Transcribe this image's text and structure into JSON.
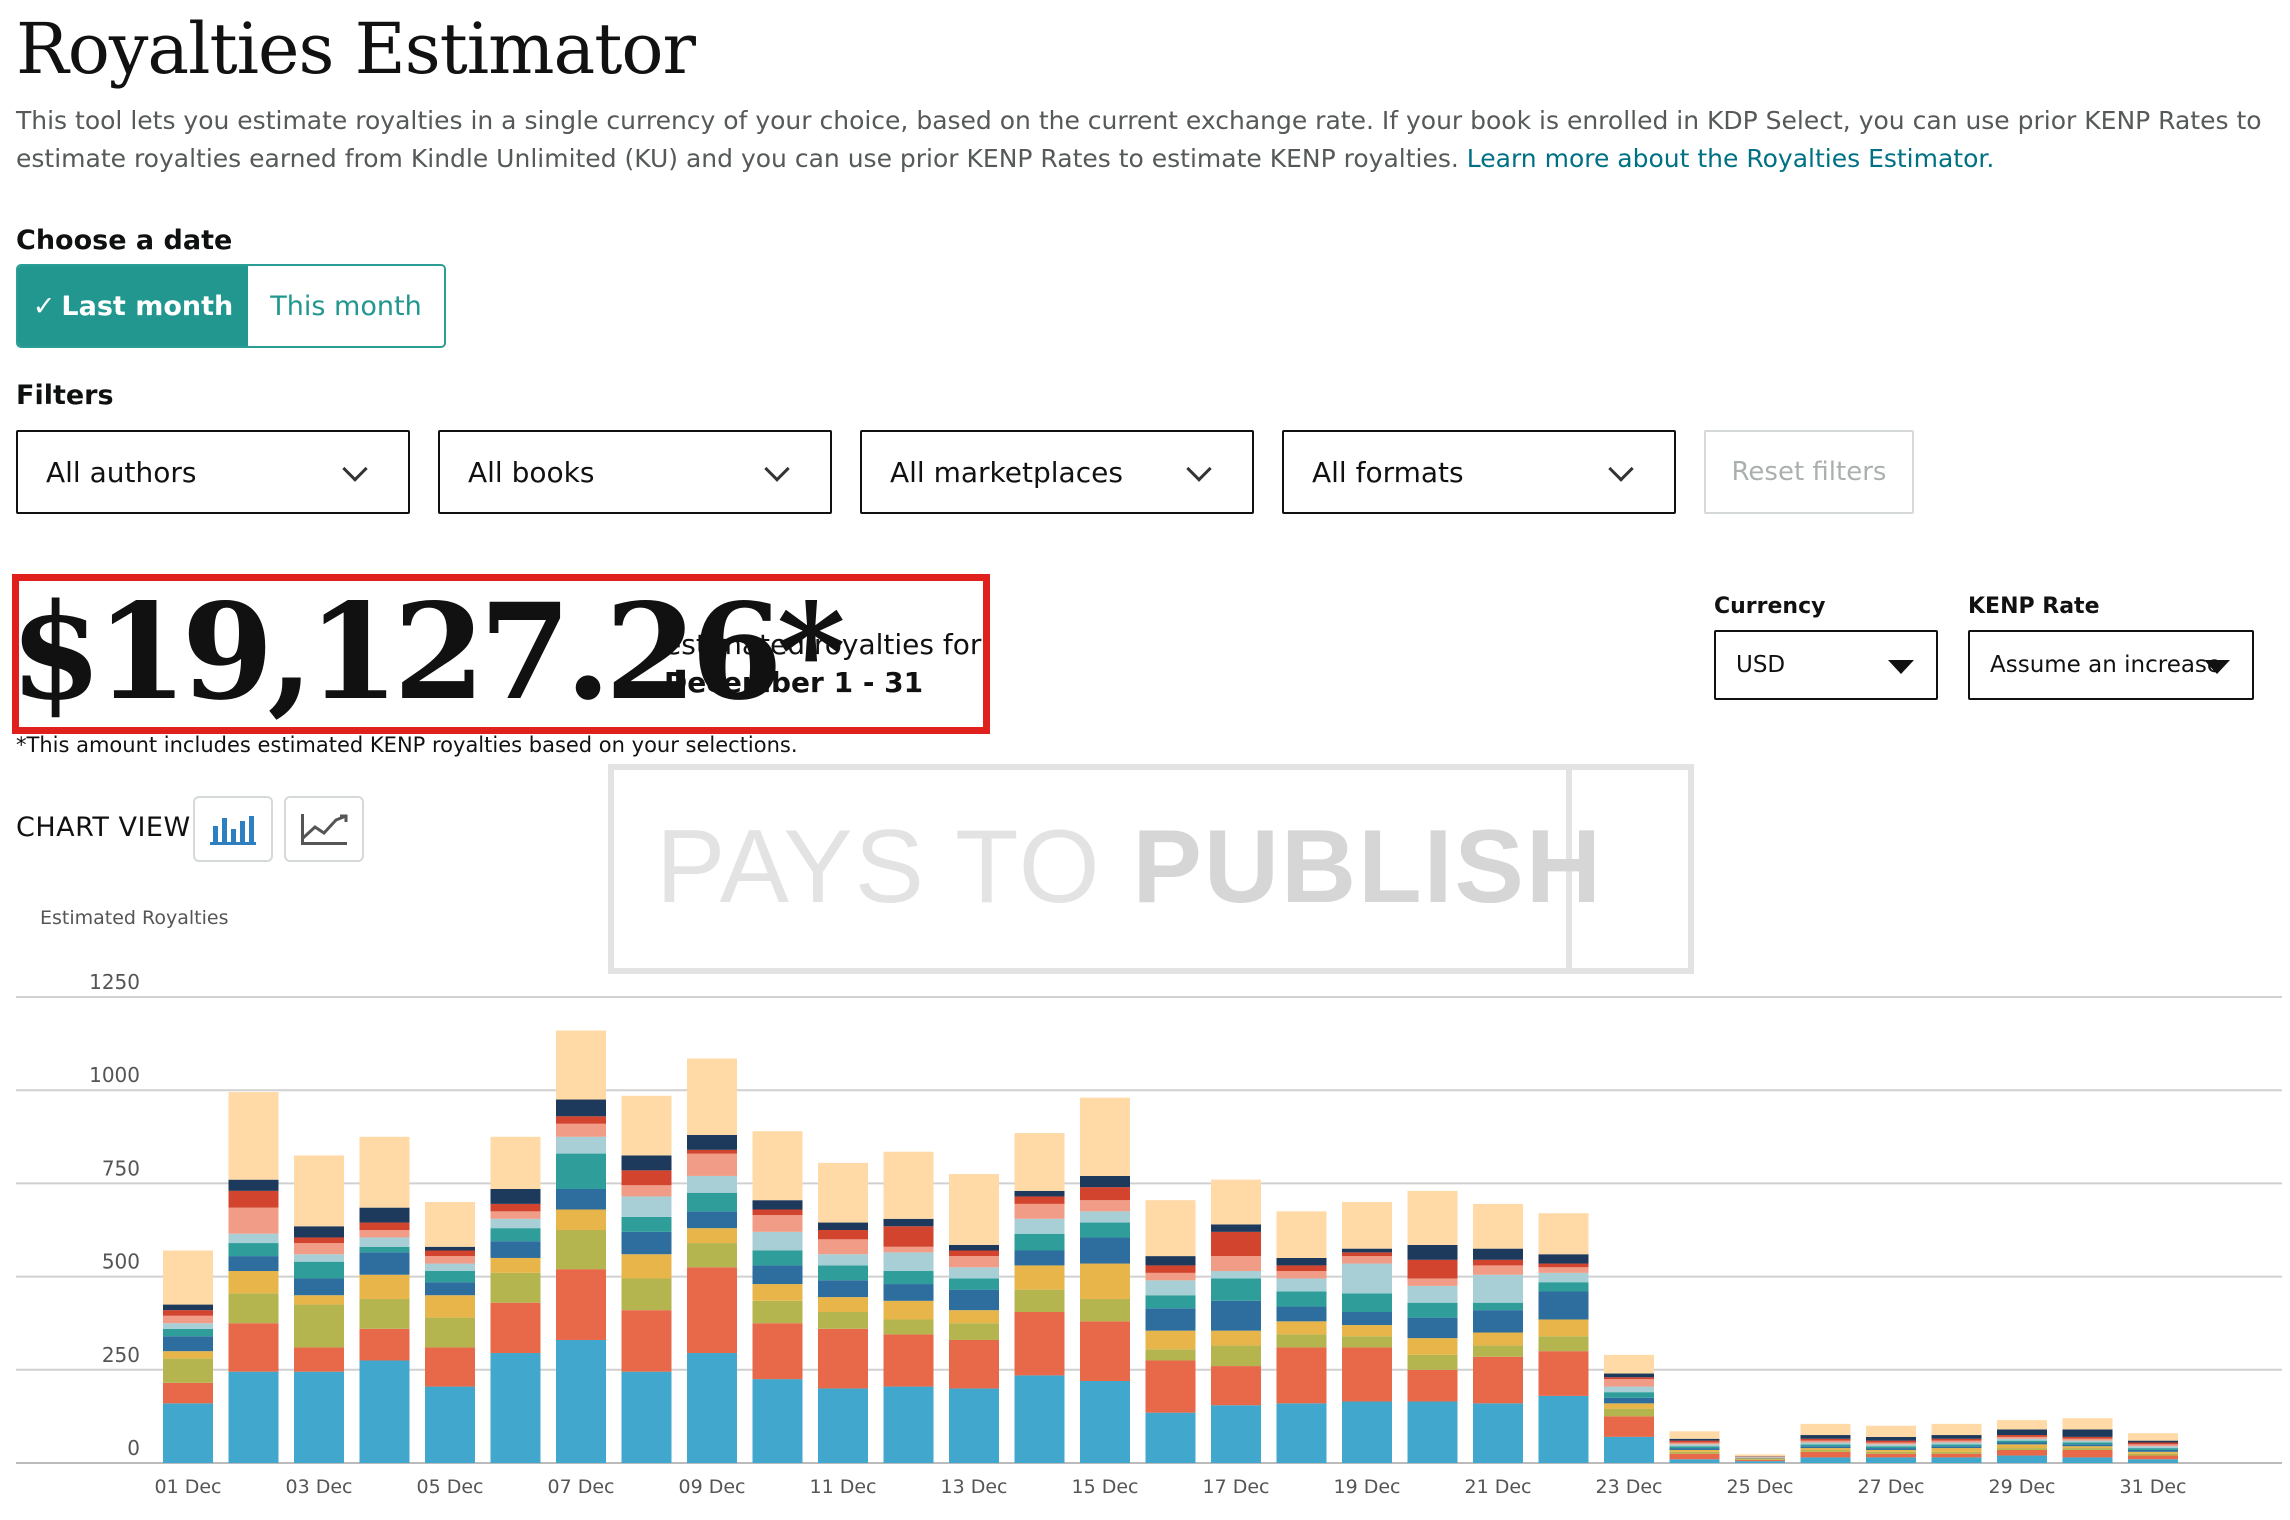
{
  "header": {
    "title": "Royalties Estimator",
    "description": "This tool lets you estimate royalties in a single currency of your choice, based on the current exchange rate. If your book is enrolled in KDP Select, you can use prior KENP Rates to estimate royalties earned from Kindle Unlimited (KU) and you can use prior KENP Rates to estimate KENP royalties.",
    "learn_more": "Learn more about the Royalties Estimator."
  },
  "date": {
    "heading": "Choose a date",
    "last_month": "Last month",
    "last_month_check": "✓",
    "this_month": "This month",
    "selected": "Last month"
  },
  "filters": {
    "heading": "Filters",
    "authors": "All authors",
    "books": "All books",
    "marketplaces": "All marketplaces",
    "formats": "All formats",
    "reset": "Reset filters"
  },
  "summary": {
    "amount": "$19,127.26*",
    "caption": "estimated royalties for",
    "range": "December 1 - 31",
    "note": "*This amount includes estimated KENP royalties based on your selections."
  },
  "settings": {
    "currency_label": "Currency",
    "currency_value": "USD",
    "kenp_label": "KENP Rate",
    "kenp_value": "Assume an increase"
  },
  "chart_view": {
    "label": "CHART VIEW",
    "active": "bar"
  },
  "watermark": {
    "light": "PAYS TO ",
    "bold": "PUBLISH"
  },
  "chart_data": {
    "type": "bar",
    "stacked": true,
    "ylabel": "Estimated Royalties",
    "ylim": [
      0,
      1250
    ],
    "yticks": [
      0,
      250,
      500,
      750,
      1000,
      1250
    ],
    "grid": true,
    "categories": [
      "01 Dec",
      "02 Dec",
      "03 Dec",
      "04 Dec",
      "05 Dec",
      "06 Dec",
      "07 Dec",
      "08 Dec",
      "09 Dec",
      "10 Dec",
      "11 Dec",
      "12 Dec",
      "13 Dec",
      "14 Dec",
      "15 Dec",
      "16 Dec",
      "17 Dec",
      "18 Dec",
      "19 Dec",
      "20 Dec",
      "21 Dec",
      "22 Dec",
      "23 Dec",
      "24 Dec",
      "25 Dec",
      "26 Dec",
      "27 Dec",
      "28 Dec",
      "29 Dec",
      "30 Dec",
      "31 Dec"
    ],
    "tick_labels": [
      "01 Dec",
      "03 Dec",
      "05 Dec",
      "07 Dec",
      "09 Dec",
      "11 Dec",
      "13 Dec",
      "15 Dec",
      "17 Dec",
      "19 Dec",
      "21 Dec",
      "23 Dec",
      "25 Dec",
      "27 Dec",
      "29 Dec",
      "31 Dec"
    ],
    "colors": [
      "#41a7cc",
      "#e8694a",
      "#b4b54f",
      "#e8b54a",
      "#2e6e9e",
      "#2f9e9a",
      "#a8cfd6",
      "#f09c86",
      "#d2442e",
      "#1d3a5c",
      "#ffd9a6"
    ],
    "series": [
      {
        "values": [
          160,
          245,
          245,
          275,
          205,
          295,
          330,
          245,
          295,
          225,
          200,
          205,
          200,
          235,
          220,
          135,
          155,
          160,
          165,
          165,
          160,
          180,
          70,
          10,
          5,
          15,
          15,
          15,
          20,
          15,
          10
        ]
      },
      {
        "values": [
          55,
          130,
          65,
          85,
          105,
          135,
          190,
          165,
          230,
          150,
          160,
          140,
          130,
          170,
          160,
          140,
          105,
          150,
          145,
          85,
          125,
          120,
          55,
          15,
          3,
          15,
          10,
          10,
          15,
          20,
          10
        ]
      },
      {
        "values": [
          65,
          80,
          115,
          80,
          80,
          80,
          105,
          85,
          65,
          60,
          45,
          40,
          45,
          60,
          60,
          30,
          55,
          35,
          30,
          40,
          30,
          40,
          20,
          5,
          2,
          5,
          5,
          5,
          5,
          5,
          5
        ]
      },
      {
        "values": [
          20,
          60,
          25,
          65,
          60,
          40,
          55,
          65,
          40,
          45,
          40,
          50,
          35,
          65,
          95,
          50,
          40,
          35,
          30,
          45,
          35,
          45,
          15,
          5,
          2,
          5,
          5,
          10,
          10,
          5,
          5
        ]
      },
      {
        "values": [
          40,
          40,
          45,
          60,
          35,
          45,
          55,
          60,
          45,
          50,
          45,
          45,
          55,
          40,
          70,
          60,
          80,
          40,
          35,
          55,
          60,
          75,
          15,
          5,
          1,
          5,
          5,
          5,
          5,
          5,
          5
        ]
      },
      {
        "values": [
          20,
          35,
          45,
          15,
          30,
          35,
          95,
          40,
          50,
          40,
          40,
          35,
          30,
          45,
          40,
          35,
          60,
          40,
          50,
          40,
          20,
          25,
          15,
          5,
          1,
          5,
          5,
          5,
          5,
          5,
          5
        ]
      },
      {
        "values": [
          15,
          25,
          20,
          25,
          20,
          25,
          45,
          55,
          45,
          50,
          30,
          50,
          30,
          40,
          30,
          40,
          20,
          35,
          80,
          45,
          75,
          25,
          15,
          5,
          1,
          5,
          5,
          5,
          5,
          5,
          5
        ]
      },
      {
        "values": [
          20,
          70,
          30,
          20,
          20,
          20,
          35,
          30,
          60,
          45,
          40,
          15,
          30,
          40,
          30,
          20,
          40,
          20,
          20,
          20,
          25,
          15,
          20,
          5,
          1,
          5,
          5,
          5,
          5,
          5,
          5
        ]
      },
      {
        "values": [
          15,
          45,
          15,
          20,
          15,
          20,
          20,
          40,
          10,
          15,
          25,
          55,
          15,
          20,
          35,
          20,
          65,
          15,
          10,
          50,
          15,
          10,
          5,
          5,
          1,
          5,
          5,
          5,
          5,
          5,
          5
        ]
      },
      {
        "values": [
          15,
          30,
          30,
          40,
          10,
          40,
          45,
          40,
          40,
          25,
          20,
          20,
          15,
          15,
          30,
          25,
          20,
          20,
          10,
          40,
          30,
          25,
          10,
          5,
          1,
          10,
          10,
          10,
          15,
          20,
          5
        ]
      },
      {
        "values": [
          145,
          235,
          190,
          190,
          120,
          140,
          185,
          160,
          205,
          185,
          160,
          180,
          190,
          155,
          210,
          150,
          120,
          125,
          125,
          145,
          120,
          110,
          50,
          20,
          5,
          30,
          30,
          30,
          25,
          30,
          20
        ]
      }
    ]
  }
}
